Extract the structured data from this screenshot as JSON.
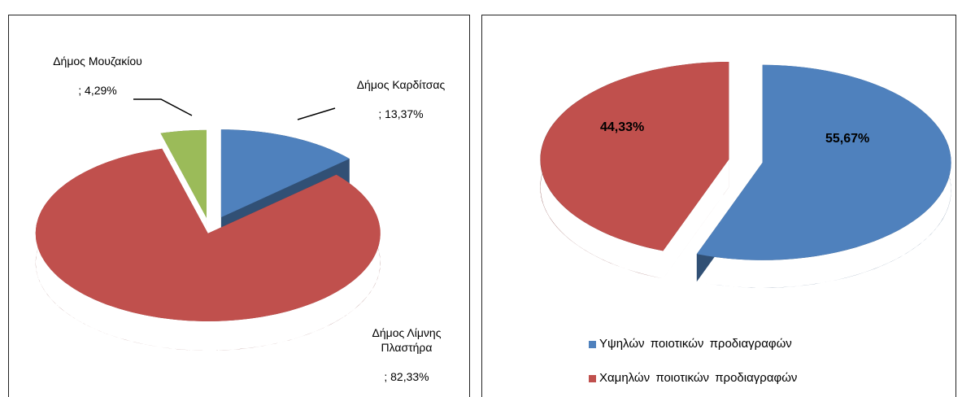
{
  "chart_data": [
    {
      "type": "pie",
      "categories": [
        "Δήμος Καρδίτσας",
        "Δήμος Λίμνης Πλαστήρα",
        "Δήμος Μουζακίου"
      ],
      "values": [
        13.37,
        82.33,
        4.29
      ],
      "value_labels": [
        "; 13,37%",
        "; 82,33%",
        "; 4,29%"
      ],
      "colors": [
        "#4f81bd",
        "#c0504d",
        "#9bbb59"
      ]
    },
    {
      "type": "pie",
      "categories": [
        "Υψηλών ποιοτικών προδιαγραφών",
        "Χαμηλών ποιοτικών προδιαγραφών"
      ],
      "values": [
        55.67,
        44.33
      ],
      "value_labels": [
        "55,67%",
        "44,33%"
      ],
      "colors": [
        "#4f81bd",
        "#c0504d"
      ],
      "legend": "bottom"
    }
  ]
}
